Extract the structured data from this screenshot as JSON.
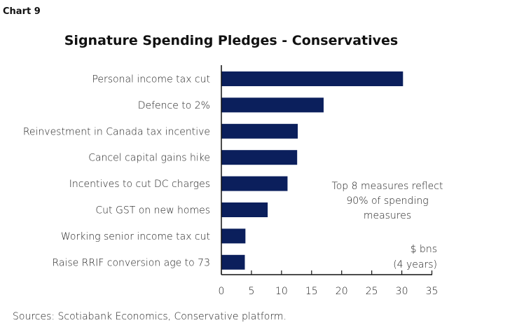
{
  "chart_label": "Chart 9",
  "chart_data": {
    "type": "bar",
    "orientation": "horizontal",
    "title": "Signature Spending Pledges  - Conservatives",
    "categories": [
      "Personal income tax cut",
      "Defence to 2%",
      "Reinvestment in Canada tax incentive",
      "Cancel capital gains hike",
      "Incentives to cut DC charges",
      "Cut GST on new homes",
      "Working senior income tax cut",
      "Raise RRIF conversion age to 73"
    ],
    "values": [
      30.2,
      17.0,
      12.7,
      12.6,
      11.0,
      7.7,
      4.0,
      3.9
    ],
    "xlim": [
      0,
      35
    ],
    "xticks": [
      "0",
      "5",
      "10",
      "15",
      "20",
      "25",
      "30",
      "35"
    ],
    "grid": false,
    "bar_color": "#0b1f5c",
    "annotation": [
      "Top 8 measures reflect",
      "90% of spending",
      "measures"
    ],
    "unit_label": [
      "$ bns",
      "(4 years)"
    ]
  },
  "source": "Sources: Scotiabank Economics, Conservative platform."
}
